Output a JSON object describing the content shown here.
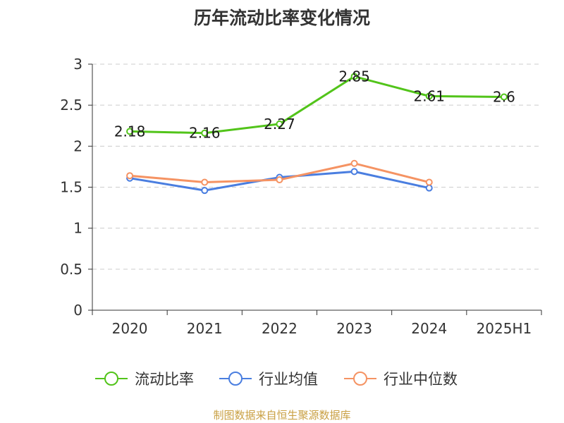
{
  "chart_data": {
    "type": "line",
    "title": "历年流动比率变化情况",
    "categories": [
      "2020",
      "2021",
      "2022",
      "2023",
      "2024",
      "2025H1"
    ],
    "ylim": [
      0,
      3
    ],
    "yticks": [
      "0",
      "0.5",
      "1",
      "1.5",
      "2",
      "2.5",
      "3"
    ],
    "grid": true,
    "legend_position": "bottom",
    "series": [
      {
        "name": "流动比率",
        "color": "#52c41a",
        "values": [
          2.18,
          2.16,
          2.27,
          2.85,
          2.61,
          2.6
        ],
        "labels": [
          "2.18",
          "2.16",
          "2.27",
          "2.85",
          "2.61",
          "2.6"
        ]
      },
      {
        "name": "行业均值",
        "color": "#4a7ee0",
        "values": [
          1.61,
          1.46,
          1.62,
          1.69,
          1.49,
          null
        ]
      },
      {
        "name": "行业中位数",
        "color": "#f59363",
        "values": [
          1.64,
          1.56,
          1.59,
          1.79,
          1.56,
          null
        ]
      }
    ]
  },
  "footer": "制图数据来自恒生聚源数据库"
}
